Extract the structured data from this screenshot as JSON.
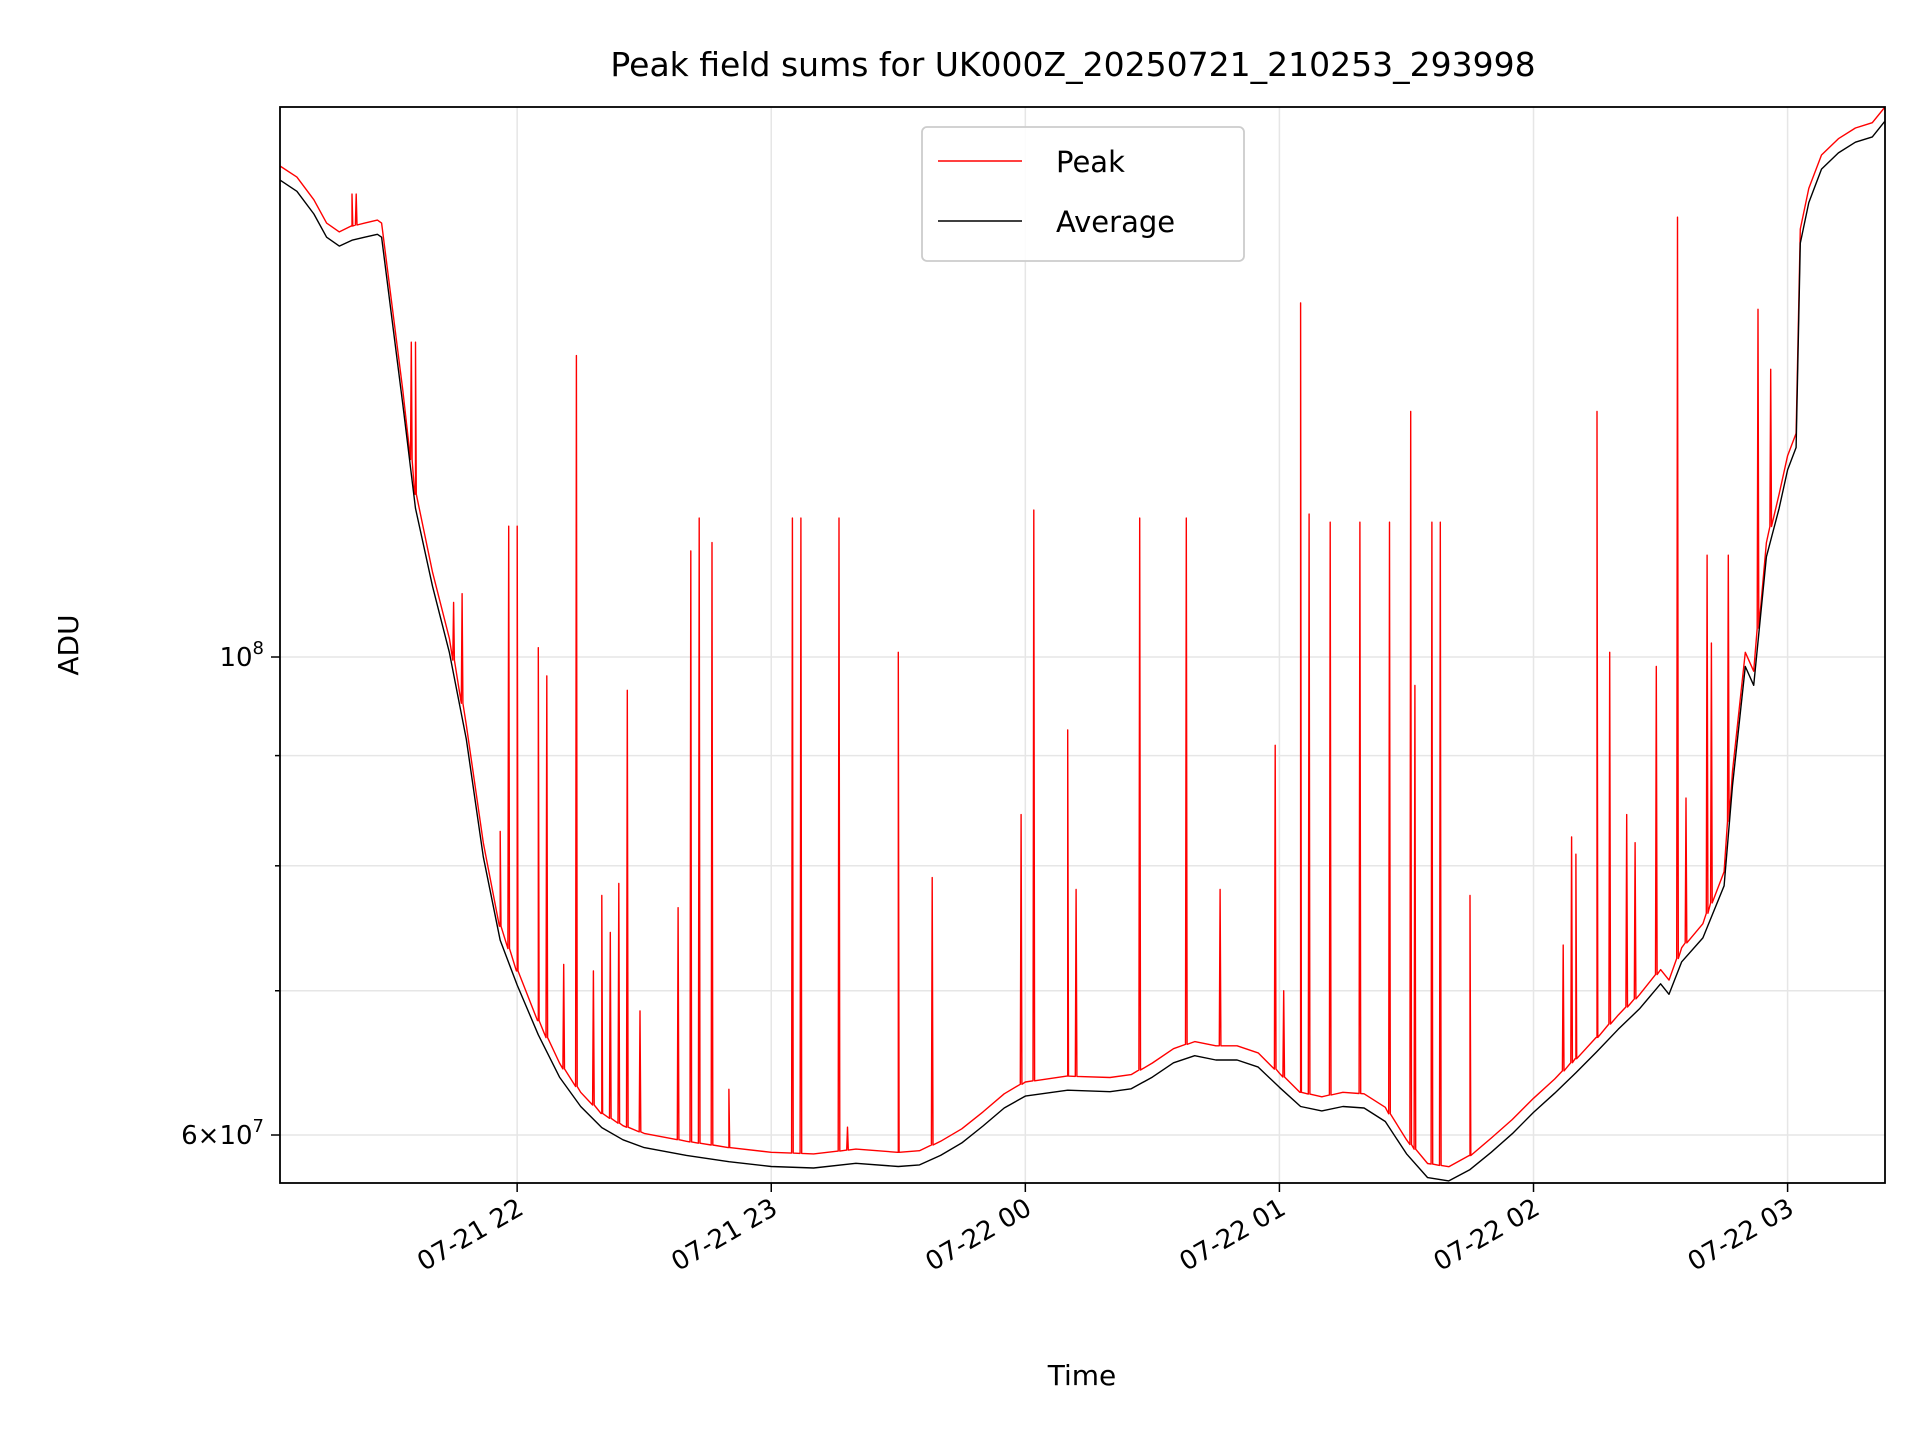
{
  "chart_data": {
    "type": "line",
    "title": "Peak field sums for UK000Z_20250721_210253_293998",
    "xlabel": "Time",
    "ylabel": "ADU",
    "yscale": "log",
    "ylim": [
      57000000,
      180000000
    ],
    "xlim": [
      "2025-07-21 21:04",
      "2025-07-22 03:23"
    ],
    "grid": true,
    "legend_position": "top-center",
    "x_ticks": [
      {
        "t": "2025-07-21 22:00",
        "label": "07-21 22"
      },
      {
        "t": "2025-07-21 23:00",
        "label": "07-21 23"
      },
      {
        "t": "2025-07-22 00:00",
        "label": "07-22 00"
      },
      {
        "t": "2025-07-22 01:00",
        "label": "07-22 01"
      },
      {
        "t": "2025-07-22 02:00",
        "label": "07-22 02"
      },
      {
        "t": "2025-07-22 03:00",
        "label": "07-22 03"
      }
    ],
    "y_major_ticks": [
      {
        "value": 60000000,
        "base": "6",
        "times": "×",
        "power": "10",
        "exp": "7"
      },
      {
        "value": 100000000,
        "base": "",
        "times": "",
        "power": "10",
        "exp": "8"
      }
    ],
    "y_minor_grid": [
      70000000,
      80000000,
      90000000
    ],
    "series": [
      {
        "name": "Peak",
        "color": "#ff0000",
        "baseline": [
          [
            "2025-07-21 21:04",
            169000000
          ],
          [
            "2025-07-21 21:08",
            167000000
          ],
          [
            "2025-07-21 21:12",
            163000000
          ],
          [
            "2025-07-21 21:15",
            159000000
          ],
          [
            "2025-07-21 21:18",
            157500000
          ],
          [
            "2025-07-21 21:21",
            158500000
          ],
          [
            "2025-07-21 21:24",
            159000000
          ],
          [
            "2025-07-21 21:27",
            159500000
          ],
          [
            "2025-07-21 21:28",
            159000000
          ],
          [
            "2025-07-21 21:30",
            148000000
          ],
          [
            "2025-07-21 21:33",
            133000000
          ],
          [
            "2025-07-21 21:36",
            119000000
          ],
          [
            "2025-07-21 21:40",
            109500000
          ],
          [
            "2025-07-21 21:44",
            102000000
          ],
          [
            "2025-07-21 21:48",
            93000000
          ],
          [
            "2025-07-21 21:52",
            82000000
          ],
          [
            "2025-07-21 21:56",
            75000000
          ],
          [
            "2025-07-21 22:00",
            71500000
          ],
          [
            "2025-07-21 22:05",
            67800000
          ],
          [
            "2025-07-21 22:10",
            64800000
          ],
          [
            "2025-07-21 22:15",
            62800000
          ],
          [
            "2025-07-21 22:20",
            61400000
          ],
          [
            "2025-07-21 22:25",
            60600000
          ],
          [
            "2025-07-21 22:30",
            60100000
          ],
          [
            "2025-07-21 22:40",
            59600000
          ],
          [
            "2025-07-21 22:50",
            59200000
          ],
          [
            "2025-07-21 23:00",
            58900000
          ],
          [
            "2025-07-21 23:10",
            58800000
          ],
          [
            "2025-07-21 23:20",
            59100000
          ],
          [
            "2025-07-21 23:30",
            58900000
          ],
          [
            "2025-07-21 23:35",
            59000000
          ],
          [
            "2025-07-21 23:40",
            59600000
          ],
          [
            "2025-07-21 23:45",
            60400000
          ],
          [
            "2025-07-21 23:50",
            61500000
          ],
          [
            "2025-07-21 23:55",
            62700000
          ],
          [
            "2025-07-22 00:00",
            63500000
          ],
          [
            "2025-07-22 00:10",
            63900000
          ],
          [
            "2025-07-22 00:20",
            63800000
          ],
          [
            "2025-07-22 00:25",
            64000000
          ],
          [
            "2025-07-22 00:30",
            64800000
          ],
          [
            "2025-07-22 00:35",
            65800000
          ],
          [
            "2025-07-22 00:40",
            66300000
          ],
          [
            "2025-07-22 00:45",
            66000000
          ],
          [
            "2025-07-22 00:50",
            66000000
          ],
          [
            "2025-07-22 00:55",
            65500000
          ],
          [
            "2025-07-22 01:00",
            64100000
          ],
          [
            "2025-07-22 01:05",
            62800000
          ],
          [
            "2025-07-22 01:10",
            62500000
          ],
          [
            "2025-07-22 01:15",
            62800000
          ],
          [
            "2025-07-22 01:20",
            62700000
          ],
          [
            "2025-07-22 01:25",
            61800000
          ],
          [
            "2025-07-22 01:30",
            59700000
          ],
          [
            "2025-07-22 01:35",
            58200000
          ],
          [
            "2025-07-22 01:40",
            58000000
          ],
          [
            "2025-07-22 01:45",
            58700000
          ],
          [
            "2025-07-22 01:50",
            59800000
          ],
          [
            "2025-07-22 01:55",
            61000000
          ],
          [
            "2025-07-22 02:00",
            62400000
          ],
          [
            "2025-07-22 02:05",
            63700000
          ],
          [
            "2025-07-22 02:10",
            65100000
          ],
          [
            "2025-07-22 02:15",
            66600000
          ],
          [
            "2025-07-22 02:20",
            68200000
          ],
          [
            "2025-07-22 02:25",
            69700000
          ],
          [
            "2025-07-22 02:30",
            71600000
          ],
          [
            "2025-07-22 02:32",
            70800000
          ],
          [
            "2025-07-22 02:35",
            73300000
          ],
          [
            "2025-07-22 02:40",
            75200000
          ],
          [
            "2025-07-22 02:45",
            79500000
          ],
          [
            "2025-07-22 02:47",
            88500000
          ],
          [
            "2025-07-22 02:50",
            100500000
          ],
          [
            "2025-07-22 02:52",
            98500000
          ],
          [
            "2025-07-22 02:55",
            113000000
          ],
          [
            "2025-07-22 02:58",
            119000000
          ],
          [
            "2025-07-22 03:00",
            124000000
          ],
          [
            "2025-07-22 03:02",
            127000000
          ],
          [
            "2025-07-22 03:03",
            158000000
          ],
          [
            "2025-07-22 03:05",
            165000000
          ],
          [
            "2025-07-22 03:08",
            171000000
          ],
          [
            "2025-07-22 03:12",
            174000000
          ],
          [
            "2025-07-22 03:16",
            176000000
          ],
          [
            "2025-07-22 03:20",
            177000000
          ],
          [
            "2025-07-22 03:23",
            180000000
          ]
        ],
        "spikes": [
          [
            "2025-07-21 21:21",
            164000000
          ],
          [
            "2025-07-21 21:22",
            164000000
          ],
          [
            "2025-07-21 21:35",
            140000000
          ],
          [
            "2025-07-21 21:36",
            140000000
          ],
          [
            "2025-07-21 21:45",
            106000000
          ],
          [
            "2025-07-21 21:47",
            107000000
          ],
          [
            "2025-07-21 21:56",
            83000000
          ],
          [
            "2025-07-21 21:58",
            115000000
          ],
          [
            "2025-07-21 22:00",
            115000000
          ],
          [
            "2025-07-21 22:05",
            101000000
          ],
          [
            "2025-07-21 22:07",
            98000000
          ],
          [
            "2025-07-21 22:11",
            72000000
          ],
          [
            "2025-07-21 22:14",
            138000000
          ],
          [
            "2025-07-21 22:18",
            71500000
          ],
          [
            "2025-07-21 22:20",
            77500000
          ],
          [
            "2025-07-21 22:22",
            74500000
          ],
          [
            "2025-07-21 22:24",
            78500000
          ],
          [
            "2025-07-21 22:26",
            96500000
          ],
          [
            "2025-07-21 22:29",
            68500000
          ],
          [
            "2025-07-21 22:38",
            76500000
          ],
          [
            "2025-07-21 22:41",
            112000000
          ],
          [
            "2025-07-21 22:43",
            116000000
          ],
          [
            "2025-07-21 22:46",
            113000000
          ],
          [
            "2025-07-21 22:50",
            63000000
          ],
          [
            "2025-07-21 23:05",
            116000000
          ],
          [
            "2025-07-21 23:07",
            116000000
          ],
          [
            "2025-07-21 23:16",
            116000000
          ],
          [
            "2025-07-21 23:18",
            60500000
          ],
          [
            "2025-07-21 23:30",
            100500000
          ],
          [
            "2025-07-21 23:38",
            79000000
          ],
          [
            "2025-07-21 23:59",
            84500000
          ],
          [
            "2025-07-22 00:02",
            117000000
          ],
          [
            "2025-07-22 00:10",
            92500000
          ],
          [
            "2025-07-22 00:12",
            78000000
          ],
          [
            "2025-07-22 00:27",
            116000000
          ],
          [
            "2025-07-22 00:38",
            116000000
          ],
          [
            "2025-07-22 00:46",
            78000000
          ],
          [
            "2025-07-22 00:59",
            91000000
          ],
          [
            "2025-07-22 01:01",
            70000000
          ],
          [
            "2025-07-22 01:05",
            146000000
          ],
          [
            "2025-07-22 01:07",
            116500000
          ],
          [
            "2025-07-22 01:12",
            115500000
          ],
          [
            "2025-07-22 01:19",
            115500000
          ],
          [
            "2025-07-22 01:26",
            115500000
          ],
          [
            "2025-07-22 01:31",
            130000000
          ],
          [
            "2025-07-22 01:32",
            97000000
          ],
          [
            "2025-07-22 01:36",
            115500000
          ],
          [
            "2025-07-22 01:38",
            115500000
          ],
          [
            "2025-07-22 01:45",
            77500000
          ],
          [
            "2025-07-22 02:07",
            73500000
          ],
          [
            "2025-07-22 02:09",
            82500000
          ],
          [
            "2025-07-22 02:10",
            81000000
          ],
          [
            "2025-07-22 02:15",
            130000000
          ],
          [
            "2025-07-22 02:18",
            100500000
          ],
          [
            "2025-07-22 02:22",
            84500000
          ],
          [
            "2025-07-22 02:24",
            82000000
          ],
          [
            "2025-07-22 02:29",
            99000000
          ],
          [
            "2025-07-22 02:34",
            160000000
          ],
          [
            "2025-07-22 02:36",
            86000000
          ],
          [
            "2025-07-22 02:41",
            111500000
          ],
          [
            "2025-07-22 02:42",
            101500000
          ],
          [
            "2025-07-22 02:46",
            111500000
          ],
          [
            "2025-07-22 02:53",
            145000000
          ],
          [
            "2025-07-22 02:56",
            136000000
          ]
        ]
      },
      {
        "name": "Average",
        "color": "#000000",
        "offset_ratio": 0.985
      }
    ]
  }
}
